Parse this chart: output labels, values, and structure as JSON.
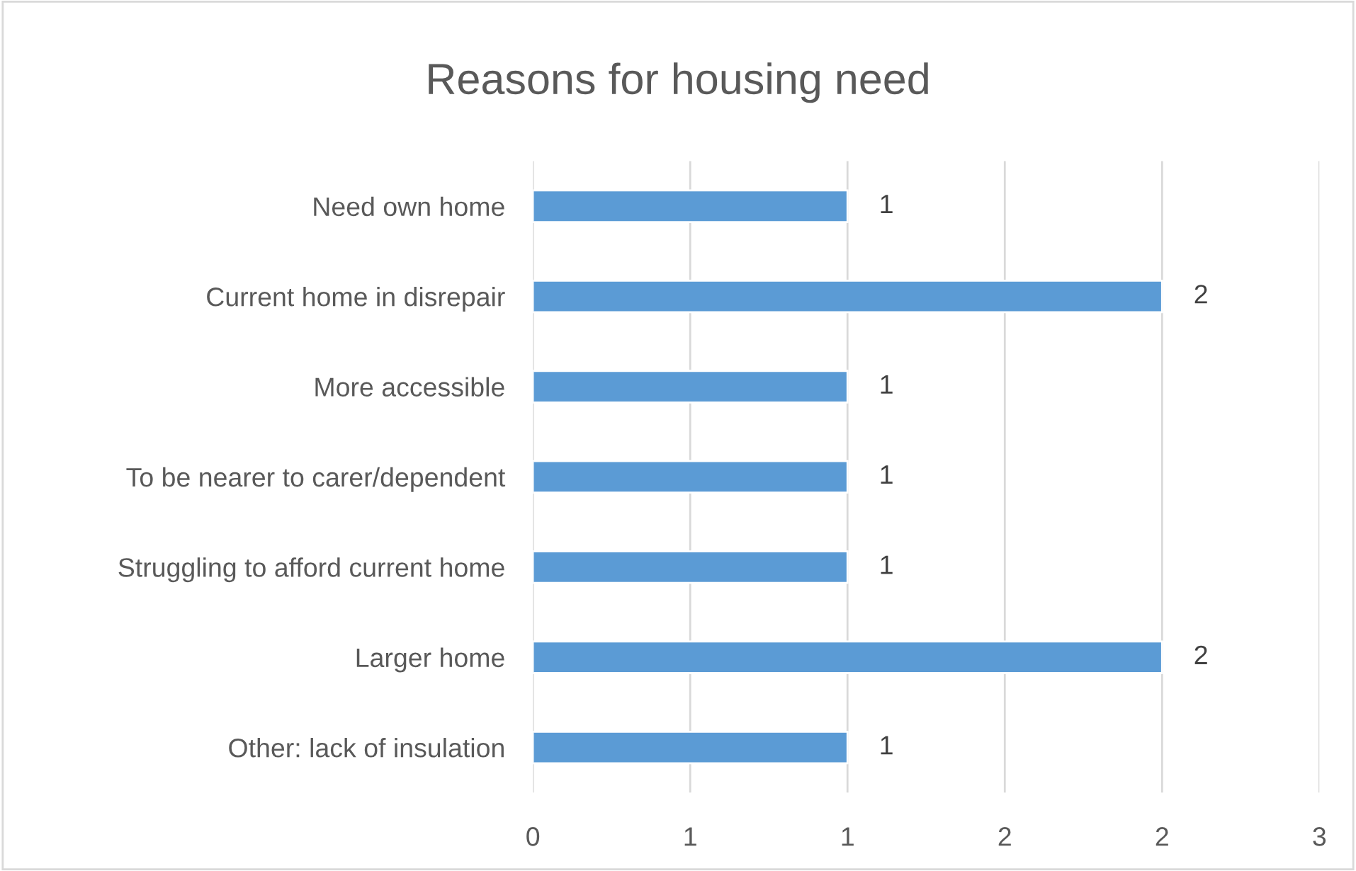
{
  "chart_data": {
    "type": "bar",
    "title": "Reasons for housing need",
    "orientation": "horizontal",
    "categories": [
      "Need own home",
      "Current home in disrepair",
      "More accessible",
      "To be nearer to carer/dependent",
      "Struggling to afford current home",
      "Larger home",
      "Other: lack of insulation"
    ],
    "values": [
      1,
      2,
      1,
      1,
      1,
      2,
      1
    ],
    "color": "#5b9bd5",
    "xlim": [
      0,
      2.5
    ],
    "xticks": [
      0,
      {
        "value": 0.5,
        "label": "1"
      },
      1,
      {
        "value": 1.5,
        "label": "2"
      },
      2,
      {
        "value": 2.5,
        "label": "3"
      }
    ],
    "grid": "x",
    "data_labels": true
  }
}
